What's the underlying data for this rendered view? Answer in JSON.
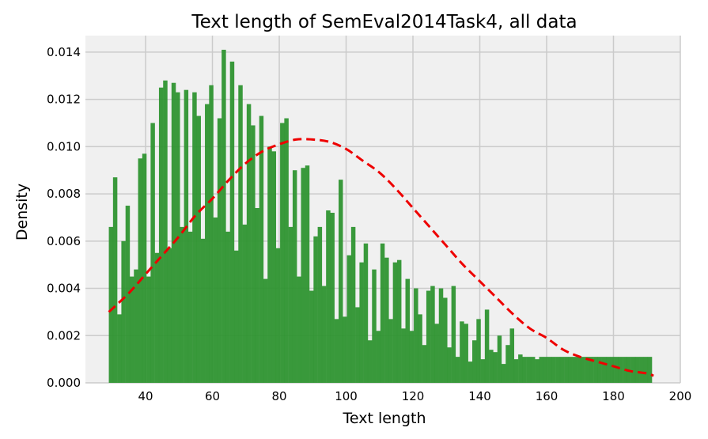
{
  "chart_data": {
    "type": "bar",
    "title": "Text length of SemEval2014Task4, all data",
    "xlabel": "Text length",
    "ylabel": "Density",
    "xlim": [
      22,
      200
    ],
    "ylim": [
      0,
      0.0147
    ],
    "x_ticks": [
      40,
      60,
      80,
      100,
      120,
      140,
      160,
      180,
      200
    ],
    "y_ticks": [
      "0.000",
      "0.002",
      "0.004",
      "0.006",
      "0.008",
      "0.010",
      "0.012",
      "0.014"
    ],
    "grid": true,
    "bar_color": "#2e9430",
    "curve_color": "#ee0000",
    "background_color": "#f0f0f0",
    "bins": {
      "start": 29,
      "width": 1.25,
      "densities": [
        0.0066,
        0.0087,
        0.0029,
        0.006,
        0.0075,
        0.0045,
        0.0048,
        0.0095,
        0.0097,
        0.0045,
        0.011,
        0.0055,
        0.0125,
        0.0128,
        0.0057,
        0.0127,
        0.0123,
        0.0066,
        0.0124,
        0.0064,
        0.0123,
        0.0113,
        0.0061,
        0.0118,
        0.0126,
        0.007,
        0.0112,
        0.0141,
        0.0064,
        0.0136,
        0.0056,
        0.0126,
        0.0067,
        0.0118,
        0.0109,
        0.0074,
        0.0113,
        0.0044,
        0.01,
        0.0098,
        0.0057,
        0.011,
        0.0112,
        0.0066,
        0.009,
        0.0045,
        0.0091,
        0.0092,
        0.0039,
        0.0062,
        0.0066,
        0.0041,
        0.0073,
        0.0072,
        0.0027,
        0.0086,
        0.0028,
        0.0054,
        0.0066,
        0.0032,
        0.0051,
        0.0059,
        0.0018,
        0.0048,
        0.0022,
        0.0059,
        0.0053,
        0.0027,
        0.0051,
        0.0052,
        0.0023,
        0.0044,
        0.0022,
        0.004,
        0.0029,
        0.0016,
        0.0039,
        0.0041,
        0.0025,
        0.004,
        0.0036,
        0.0015,
        0.0041,
        0.0011,
        0.0026,
        0.0025,
        0.0009,
        0.0018,
        0.0027,
        0.001,
        0.0031,
        0.0014,
        0.0013,
        0.002,
        0.0008,
        0.0016,
        0.0023,
        0.001,
        0.0012,
        0.0011,
        0.0011,
        0.0011,
        0.001,
        0.0011,
        0.0011,
        0.0011,
        0.0011,
        0.0011,
        0.0011,
        0.0011,
        0.0011,
        0.0011,
        0.0011,
        0.0011,
        0.0011,
        0.0011,
        0.0011,
        0.0011,
        0.0011,
        0.0011,
        0.0011,
        0.0011,
        0.0011,
        0.0011,
        0.0011,
        0.0011,
        0.0011,
        0.0011,
        0.0011,
        0.0011
      ]
    },
    "curve": {
      "style": "dashed",
      "x": [
        29,
        35,
        40,
        45,
        50,
        55,
        60,
        65,
        70,
        75,
        80,
        85,
        90,
        95,
        100,
        105,
        110,
        115,
        120,
        125,
        130,
        135,
        140,
        145,
        150,
        155,
        160,
        165,
        170,
        175,
        180,
        185,
        190,
        192
      ],
      "y": [
        0.003,
        0.0038,
        0.0046,
        0.0054,
        0.0062,
        0.0071,
        0.0078,
        0.0086,
        0.0093,
        0.0098,
        0.0101,
        0.0103,
        0.0103,
        0.0102,
        0.0099,
        0.0094,
        0.0089,
        0.0082,
        0.0074,
        0.0066,
        0.0058,
        0.005,
        0.0043,
        0.0036,
        0.0029,
        0.0023,
        0.0019,
        0.0014,
        0.0011,
        0.0009,
        0.0007,
        0.0005,
        0.0004,
        0.0003
      ]
    }
  }
}
